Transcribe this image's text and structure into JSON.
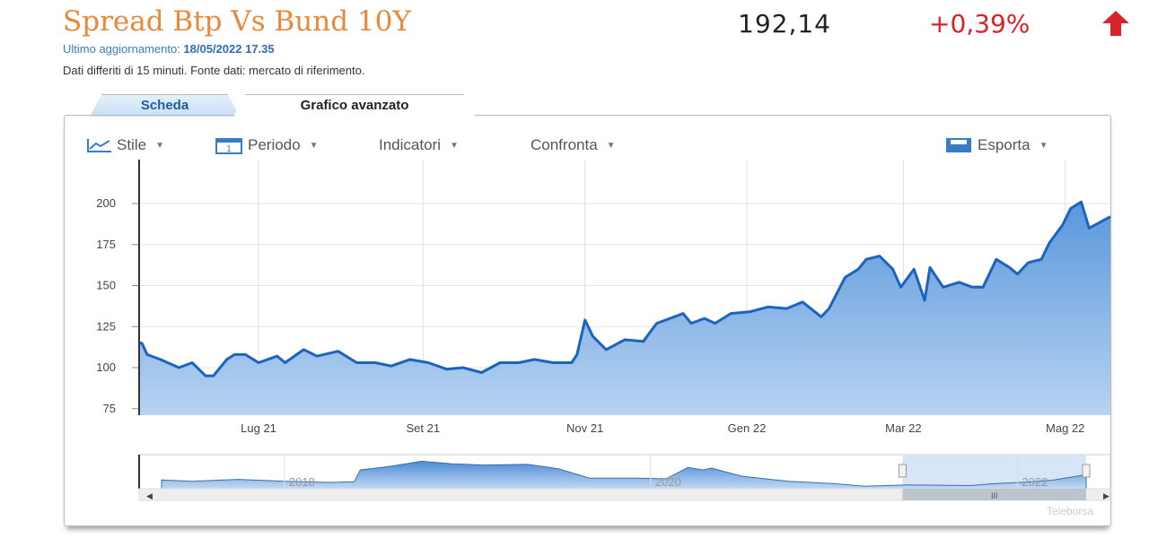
{
  "header": {
    "title": "Spread Btp Vs Bund 10Y",
    "updated_label": "Ultimo aggiornamento:",
    "updated_value": "18/05/2022 17.35",
    "delay_note": "Dati differiti di 15 minuti.  Fonte dati: mercato di riferimento.",
    "price": "192,14",
    "change": "+0,39%",
    "change_direction": "up",
    "change_color": "#d8232a",
    "title_color": "#e8883a"
  },
  "tabs": [
    {
      "label": "Scheda",
      "active": false
    },
    {
      "label": "Grafico avanzato",
      "active": true
    }
  ],
  "toolbar": {
    "style": "Stile",
    "period": "Periodo",
    "indicators": "Indicatori",
    "compare": "Confronta",
    "export": "Esporta"
  },
  "brand": "Teleborsa",
  "chart_data": {
    "type": "area",
    "ylim": [
      75,
      210
    ],
    "yticks": [
      75,
      100,
      125,
      150,
      175,
      200
    ],
    "xticks": [
      {
        "date": "2021-07-01",
        "label": "Lug 21"
      },
      {
        "date": "2021-09-01",
        "label": "Set 21"
      },
      {
        "date": "2021-11-01",
        "label": "Nov 21"
      },
      {
        "date": "2022-01-01",
        "label": "Gen 22"
      },
      {
        "date": "2022-03-01",
        "label": "Mar 22"
      },
      {
        "date": "2022-05-01",
        "label": "Mag 22"
      }
    ],
    "grid": true,
    "color": "#1a64c0",
    "series": [
      {
        "points": [
          [
            "2021-05-17",
            115
          ],
          [
            "2021-05-18",
            115
          ],
          [
            "2021-05-20",
            108
          ],
          [
            "2021-05-25",
            105
          ],
          [
            "2021-06-01",
            100
          ],
          [
            "2021-06-06",
            103
          ],
          [
            "2021-06-11",
            95
          ],
          [
            "2021-06-14",
            95
          ],
          [
            "2021-06-19",
            105
          ],
          [
            "2021-06-22",
            108
          ],
          [
            "2021-06-26",
            108
          ],
          [
            "2021-07-01",
            103
          ],
          [
            "2021-07-08",
            107
          ],
          [
            "2021-07-11",
            103
          ],
          [
            "2021-07-18",
            111
          ],
          [
            "2021-07-23",
            107
          ],
          [
            "2021-07-31",
            110
          ],
          [
            "2021-08-07",
            103
          ],
          [
            "2021-08-14",
            103
          ],
          [
            "2021-08-20",
            101
          ],
          [
            "2021-08-27",
            105
          ],
          [
            "2021-09-03",
            103
          ],
          [
            "2021-09-10",
            99
          ],
          [
            "2021-09-16",
            100
          ],
          [
            "2021-09-23",
            97
          ],
          [
            "2021-09-30",
            103
          ],
          [
            "2021-10-07",
            103
          ],
          [
            "2021-10-13",
            105
          ],
          [
            "2021-10-20",
            103
          ],
          [
            "2021-10-27",
            103
          ],
          [
            "2021-10-29",
            108
          ],
          [
            "2021-11-01",
            129
          ],
          [
            "2021-11-04",
            119
          ],
          [
            "2021-11-09",
            111
          ],
          [
            "2021-11-16",
            117
          ],
          [
            "2021-11-23",
            116
          ],
          [
            "2021-11-28",
            127
          ],
          [
            "2021-12-03",
            130
          ],
          [
            "2021-12-08",
            133
          ],
          [
            "2021-12-11",
            127
          ],
          [
            "2021-12-16",
            130
          ],
          [
            "2021-12-20",
            127
          ],
          [
            "2021-12-26",
            133
          ],
          [
            "2022-01-02",
            134
          ],
          [
            "2022-01-09",
            137
          ],
          [
            "2022-01-16",
            136
          ],
          [
            "2022-01-22",
            140
          ],
          [
            "2022-01-29",
            131
          ],
          [
            "2022-02-01",
            136
          ],
          [
            "2022-02-07",
            155
          ],
          [
            "2022-02-12",
            160
          ],
          [
            "2022-02-15",
            166
          ],
          [
            "2022-02-20",
            168
          ],
          [
            "2022-02-25",
            160
          ],
          [
            "2022-02-28",
            149
          ],
          [
            "2022-03-05",
            160
          ],
          [
            "2022-03-09",
            141
          ],
          [
            "2022-03-11",
            161
          ],
          [
            "2022-03-16",
            149
          ],
          [
            "2022-03-22",
            152
          ],
          [
            "2022-03-27",
            149
          ],
          [
            "2022-03-31",
            149
          ],
          [
            "2022-04-05",
            166
          ],
          [
            "2022-04-10",
            161
          ],
          [
            "2022-04-13",
            157
          ],
          [
            "2022-04-17",
            164
          ],
          [
            "2022-04-22",
            166
          ],
          [
            "2022-04-25",
            176
          ],
          [
            "2022-04-30",
            187
          ],
          [
            "2022-05-03",
            197
          ],
          [
            "2022-05-07",
            201
          ],
          [
            "2022-05-10",
            185
          ],
          [
            "2022-05-18",
            192
          ]
        ]
      }
    ],
    "navigator": {
      "labels": [
        "2018",
        "2020",
        "2022"
      ],
      "label_dates": [
        "2018-01-01",
        "2020-01-01",
        "2022-01-01"
      ],
      "points": [
        [
          "2017-05-01",
          150
        ],
        [
          "2017-07-01",
          140
        ],
        [
          "2017-10-01",
          155
        ],
        [
          "2018-01-01",
          140
        ],
        [
          "2018-04-01",
          130
        ],
        [
          "2018-05-20",
          135
        ],
        [
          "2018-06-01",
          230
        ],
        [
          "2018-08-01",
          260
        ],
        [
          "2018-10-01",
          300
        ],
        [
          "2018-12-01",
          280
        ],
        [
          "2019-02-01",
          270
        ],
        [
          "2019-05-01",
          275
        ],
        [
          "2019-07-01",
          240
        ],
        [
          "2019-09-01",
          165
        ],
        [
          "2019-12-01",
          165
        ],
        [
          "2020-02-01",
          160
        ],
        [
          "2020-03-15",
          250
        ],
        [
          "2020-04-15",
          230
        ],
        [
          "2020-05-01",
          245
        ],
        [
          "2020-07-01",
          180
        ],
        [
          "2020-10-01",
          140
        ],
        [
          "2021-01-01",
          120
        ],
        [
          "2021-03-01",
          100
        ],
        [
          "2021-06-01",
          110
        ],
        [
          "2021-10-01",
          105
        ],
        [
          "2021-11-15",
          120
        ],
        [
          "2022-02-01",
          135
        ],
        [
          "2022-03-15",
          150
        ],
        [
          "2022-05-18",
          192
        ]
      ],
      "window": [
        "2021-05-17",
        "2022-05-18"
      ]
    }
  }
}
